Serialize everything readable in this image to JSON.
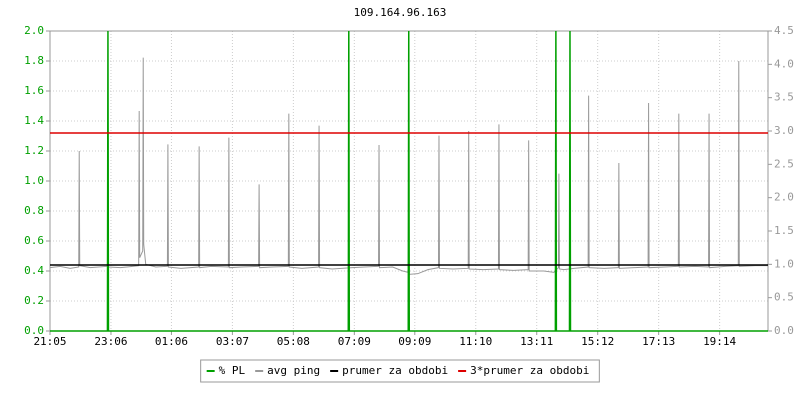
{
  "chart_data": {
    "type": "line",
    "title": "109.164.96.163",
    "xlim": [
      0,
      1425
    ],
    "xticks": [
      {
        "value": 0,
        "label": "21:05"
      },
      {
        "value": 121,
        "label": "23:06"
      },
      {
        "value": 241,
        "label": "01:06"
      },
      {
        "value": 362,
        "label": "03:07"
      },
      {
        "value": 483,
        "label": "05:08"
      },
      {
        "value": 604,
        "label": "07:09"
      },
      {
        "value": 724,
        "label": "09:09"
      },
      {
        "value": 845,
        "label": "11:10"
      },
      {
        "value": 966,
        "label": "13:11"
      },
      {
        "value": 1087,
        "label": "15:12"
      },
      {
        "value": 1208,
        "label": "17:13"
      },
      {
        "value": 1329,
        "label": "19:14"
      }
    ],
    "ylim": [
      0,
      2
    ],
    "yticks": [
      {
        "value": 0,
        "label": "0.0"
      },
      {
        "value": 0.2,
        "label": "0.2"
      },
      {
        "value": 0.4,
        "label": "0.4"
      },
      {
        "value": 0.6,
        "label": "0.6"
      },
      {
        "value": 0.8,
        "label": "0.8"
      },
      {
        "value": 1,
        "label": "1.0"
      },
      {
        "value": 1.2,
        "label": "1.2"
      },
      {
        "value": 1.4,
        "label": "1.4"
      },
      {
        "value": 1.6,
        "label": "1.6"
      },
      {
        "value": 1.8,
        "label": "1.8"
      },
      {
        "value": 2,
        "label": "2.0"
      }
    ],
    "y2lim": [
      0,
      4.5
    ],
    "y2ticks": [
      {
        "value": 0,
        "label": "0.0"
      },
      {
        "value": 0.5,
        "label": "0.5"
      },
      {
        "value": 1,
        "label": "1.0"
      },
      {
        "value": 1.5,
        "label": "1.5"
      },
      {
        "value": 2,
        "label": "2.0"
      },
      {
        "value": 2.5,
        "label": "2.5"
      },
      {
        "value": 3,
        "label": "3.0"
      },
      {
        "value": 3.5,
        "label": "3.5"
      },
      {
        "value": 4,
        "label": "4.0"
      },
      {
        "value": 4.5,
        "label": "4.5"
      }
    ],
    "grid": true,
    "legend": "bottom",
    "series": [
      {
        "name": "% PL",
        "color": "#00a000",
        "axis": "y",
        "x": [
          0,
          114,
          115,
          116,
          592,
          593,
          594,
          711,
          712,
          713,
          1003,
          1004,
          1005,
          1031,
          1032,
          1033,
          1425
        ],
        "values": [
          0,
          0,
          2,
          0,
          0,
          2,
          0,
          0,
          2,
          0,
          0,
          2,
          0,
          0,
          2,
          0,
          0
        ]
      },
      {
        "name": "avg ping",
        "color": "#999999",
        "axis": "y2",
        "x": [
          0,
          20,
          40,
          57,
          58,
          59,
          80,
          114,
          115,
          116,
          140,
          176,
          177,
          178,
          184,
          185,
          186,
          190,
          210,
          233,
          234,
          235,
          260,
          295,
          296,
          297,
          320,
          354,
          355,
          356,
          380,
          414,
          415,
          416,
          440,
          473,
          474,
          475,
          500,
          533,
          534,
          535,
          560,
          600,
          652,
          653,
          654,
          680,
          700,
          711,
          712,
          713,
          730,
          750,
          771,
          772,
          773,
          800,
          830,
          831,
          832,
          860,
          890,
          891,
          892,
          920,
          949,
          950,
          951,
          980,
          1000,
          1009,
          1010,
          1011,
          1020,
          1040,
          1068,
          1069,
          1070,
          1100,
          1128,
          1129,
          1130,
          1160,
          1187,
          1188,
          1189,
          1220,
          1247,
          1248,
          1249,
          1280,
          1307,
          1308,
          1309,
          1340,
          1366,
          1367,
          1368,
          1400,
          1425
        ],
        "values": [
          0.95,
          0.97,
          0.94,
          0.96,
          2.7,
          0.98,
          0.95,
          0.97,
          3.6,
          0.96,
          0.95,
          0.98,
          3.3,
          1.1,
          1.2,
          4.1,
          1.3,
          1.0,
          0.96,
          0.97,
          2.8,
          0.96,
          0.94,
          0.96,
          2.77,
          0.95,
          0.97,
          0.96,
          2.9,
          0.95,
          0.96,
          0.97,
          2.2,
          0.95,
          0.96,
          0.97,
          3.26,
          0.96,
          0.94,
          0.96,
          3.08,
          0.95,
          0.93,
          0.95,
          0.97,
          2.79,
          0.95,
          0.96,
          0.9,
          0.88,
          2.36,
          0.85,
          0.86,
          0.92,
          0.95,
          2.93,
          0.94,
          0.93,
          0.94,
          3.0,
          0.93,
          0.92,
          0.93,
          3.1,
          0.92,
          0.91,
          0.92,
          2.86,
          0.9,
          0.9,
          0.88,
          0.95,
          2.36,
          0.93,
          0.92,
          0.94,
          0.96,
          3.53,
          0.95,
          0.94,
          0.95,
          2.52,
          0.94,
          0.95,
          0.96,
          3.42,
          0.95,
          0.96,
          0.97,
          3.26,
          0.96,
          0.97,
          0.96,
          3.26,
          0.95,
          0.97,
          0.98,
          4.05,
          0.97,
          0.98,
          0.98
        ]
      },
      {
        "name": "prumer za obdobi",
        "color": "#000000",
        "axis": "y2",
        "x": [
          0,
          1425
        ],
        "values": [
          0.99,
          0.99
        ]
      },
      {
        "name": "3*prumer za obdobi",
        "color": "#dd0000",
        "axis": "y2",
        "x": [
          0,
          1425
        ],
        "values": [
          2.97,
          2.97
        ]
      }
    ]
  }
}
